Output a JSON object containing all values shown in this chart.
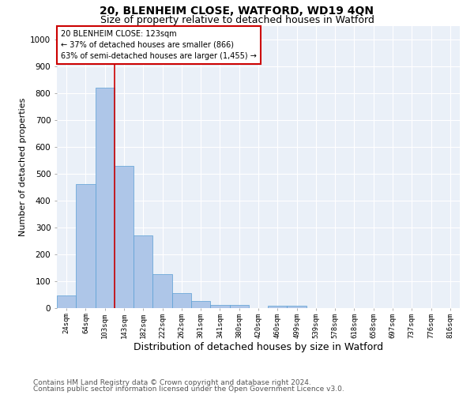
{
  "title1": "20, BLENHEIM CLOSE, WATFORD, WD19 4QN",
  "title2": "Size of property relative to detached houses in Watford",
  "xlabel": "Distribution of detached houses by size in Watford",
  "ylabel": "Number of detached properties",
  "categories": [
    "24sqm",
    "64sqm",
    "103sqm",
    "143sqm",
    "182sqm",
    "222sqm",
    "262sqm",
    "301sqm",
    "341sqm",
    "380sqm",
    "420sqm",
    "460sqm",
    "499sqm",
    "539sqm",
    "578sqm",
    "618sqm",
    "658sqm",
    "697sqm",
    "737sqm",
    "776sqm",
    "816sqm"
  ],
  "values": [
    46,
    460,
    820,
    530,
    270,
    125,
    55,
    25,
    12,
    12,
    0,
    8,
    8,
    0,
    0,
    0,
    0,
    0,
    0,
    0,
    0
  ],
  "bar_color": "#aec6e8",
  "bar_edge_color": "#5a9fd4",
  "annotation_text": "20 BLENHEIM CLOSE: 123sqm\n← 37% of detached houses are smaller (866)\n63% of semi-detached houses are larger (1,455) →",
  "annotation_box_color": "#ffffff",
  "annotation_box_edge": "#cc0000",
  "footnote1": "Contains HM Land Registry data © Crown copyright and database right 2024.",
  "footnote2": "Contains public sector information licensed under the Open Government Licence v3.0.",
  "ylim": [
    0,
    1050
  ],
  "yticks": [
    0,
    100,
    200,
    300,
    400,
    500,
    600,
    700,
    800,
    900,
    1000
  ],
  "bg_color": "#eaf0f8",
  "title1_fontsize": 10,
  "title2_fontsize": 9,
  "xlabel_fontsize": 9,
  "ylabel_fontsize": 8,
  "footnote_fontsize": 6.5,
  "red_line_color": "#cc0000",
  "red_line_x": 2.5
}
